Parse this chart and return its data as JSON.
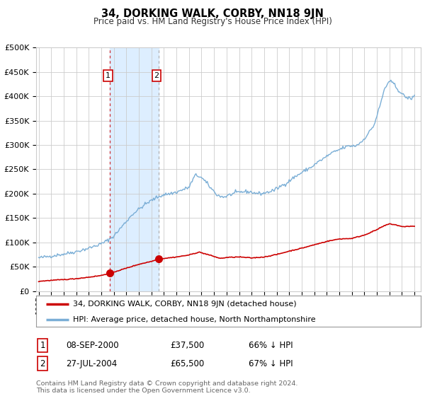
{
  "title": "34, DORKING WALK, CORBY, NN18 9JN",
  "subtitle": "Price paid vs. HM Land Registry's House Price Index (HPI)",
  "legend_line1": "34, DORKING WALK, CORBY, NN18 9JN (detached house)",
  "legend_line2": "HPI: Average price, detached house, North Northamptonshire",
  "table_rows": [
    {
      "num": "1",
      "date": "08-SEP-2000",
      "price": "£37,500",
      "pct": "66% ↓ HPI"
    },
    {
      "num": "2",
      "date": "27-JUL-2004",
      "price": "£65,500",
      "pct": "67% ↓ HPI"
    }
  ],
  "footnote1": "Contains HM Land Registry data © Crown copyright and database right 2024.",
  "footnote2": "This data is licensed under the Open Government Licence v3.0.",
  "sale1_date": 2000.69,
  "sale1_price": 37500,
  "sale2_date": 2004.57,
  "sale2_price": 65500,
  "hpi_color": "#7aaed6",
  "price_color": "#cc0000",
  "marker_color": "#cc0000",
  "bg_color": "#ffffff",
  "grid_color": "#cccccc",
  "shade_color": "#ddeeff",
  "ylim_max": 500000,
  "ylim_min": 0,
  "xlim_min": 1994.8,
  "xlim_max": 2025.5,
  "hpi_anchors_t": [
    1995.0,
    1996.0,
    1997.0,
    1998.0,
    1999.0,
    2000.0,
    2000.5,
    2001.0,
    2001.5,
    2002.0,
    2002.5,
    2003.0,
    2003.5,
    2004.0,
    2004.5,
    2005.0,
    2005.5,
    2006.0,
    2006.5,
    2007.0,
    2007.5,
    2007.9,
    2008.3,
    2008.8,
    2009.3,
    2009.8,
    2010.3,
    2010.8,
    2011.3,
    2011.8,
    2012.3,
    2012.8,
    2013.3,
    2013.8,
    2014.3,
    2014.8,
    2015.3,
    2015.8,
    2016.3,
    2016.8,
    2017.3,
    2017.8,
    2018.3,
    2018.8,
    2019.3,
    2019.8,
    2020.3,
    2020.8,
    2021.3,
    2021.8,
    2022.0,
    2022.3,
    2022.6,
    2022.9,
    2023.2,
    2023.5,
    2023.8,
    2024.1,
    2024.4,
    2024.7,
    2025.0
  ],
  "hpi_anchors_v": [
    68000,
    72000,
    76000,
    81000,
    88000,
    97000,
    104000,
    113000,
    128000,
    143000,
    158000,
    168000,
    178000,
    186000,
    193000,
    198000,
    200000,
    203000,
    208000,
    213000,
    238000,
    235000,
    225000,
    210000,
    196000,
    193000,
    198000,
    202000,
    204000,
    204000,
    201000,
    200000,
    203000,
    207000,
    215000,
    222000,
    232000,
    240000,
    248000,
    255000,
    265000,
    273000,
    282000,
    288000,
    294000,
    298000,
    298000,
    307000,
    323000,
    342000,
    360000,
    385000,
    415000,
    427000,
    430000,
    420000,
    410000,
    402000,
    397000,
    395000,
    400000
  ],
  "price_anchors_t": [
    1995.0,
    1996.0,
    1997.0,
    1998.0,
    1999.0,
    2000.0,
    2000.69,
    2001.0,
    2002.0,
    2003.0,
    2004.0,
    2004.57,
    2005.0,
    2006.0,
    2007.0,
    2007.8,
    2008.5,
    2009.5,
    2010.0,
    2011.0,
    2012.0,
    2013.0,
    2014.0,
    2015.0,
    2016.0,
    2017.0,
    2018.0,
    2019.0,
    2020.0,
    2021.0,
    2022.0,
    2022.5,
    2023.0,
    2023.5,
    2024.0,
    2024.5,
    2025.0
  ],
  "price_anchors_v": [
    20000,
    22000,
    23500,
    25500,
    28500,
    32000,
    37500,
    39000,
    47000,
    55000,
    61000,
    65500,
    67000,
    70000,
    74000,
    80000,
    75000,
    67000,
    69000,
    70000,
    68000,
    70000,
    75000,
    82000,
    88000,
    95000,
    102000,
    107000,
    108000,
    115000,
    126000,
    133000,
    138000,
    136000,
    132000,
    133000,
    133000
  ]
}
